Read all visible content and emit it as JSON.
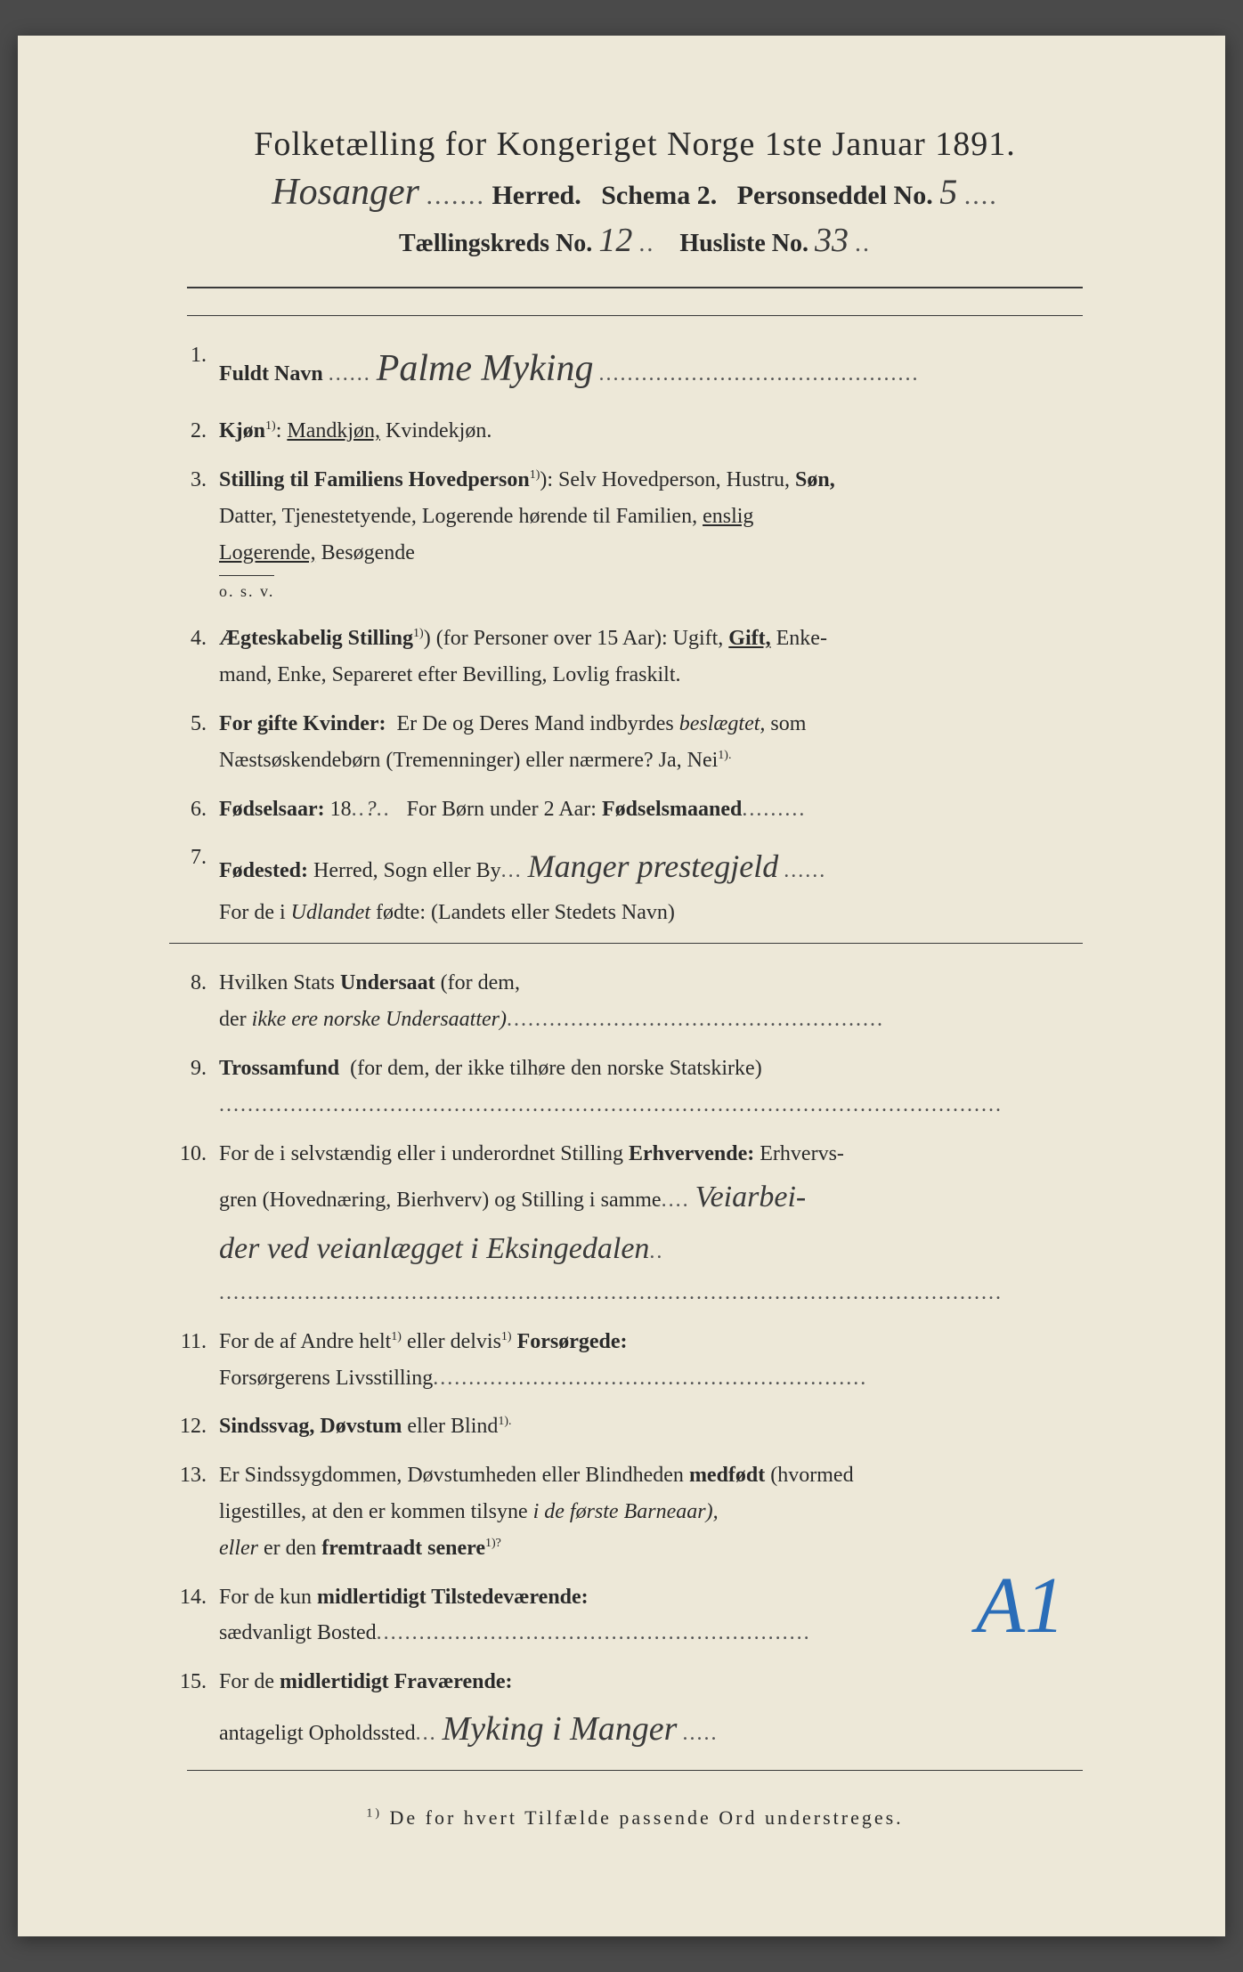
{
  "header": {
    "title_line1": "Folketælling for Kongeriget Norge 1ste Januar 1891.",
    "herred_hw": "Hosanger",
    "herred_label": "Herred.",
    "schema": "Schema 2.",
    "personseddel_label": "Personseddel No.",
    "personseddel_hw": "5",
    "taellingskreds_label": "Tællingskreds No.",
    "taellingskreds_hw": "12",
    "husliste_label": "Husliste No.",
    "husliste_hw": "33"
  },
  "q1": {
    "num": "1.",
    "label": "Fuldt Navn",
    "hw": "Palme Myking"
  },
  "q2": {
    "num": "2.",
    "label_bold": "Kjøn",
    "sup": "1)",
    "colon": ":",
    "opt1": "Mandkjøn,",
    "opt2": "Kvindekjøn."
  },
  "q3": {
    "num": "3.",
    "label": "Stilling til Familiens Hovedperson",
    "sup": "1)",
    "rest": "Selv Hovedperson, Hustru,",
    "son": "Søn,",
    "line2": "Datter, Tjenestetyende, Logerende hørende til Familien,",
    "enslig": "enslig",
    "logerende": "Logerende,",
    "besogende": "Besøgende",
    "osv": "o. s. v."
  },
  "q4": {
    "num": "4.",
    "label": "Ægteskabelig Stilling",
    "sup": "1)",
    "paren": "(for Personer over 15 Aar):",
    "opts1": "Ugift,",
    "gift": "Gift,",
    "enke": "Enke-",
    "line2": "mand, Enke, Separeret efter Bevilling, Lovlig fraskilt."
  },
  "q5": {
    "num": "5.",
    "label": "For gifte Kvinder:",
    "text1": "Er De og Deres Mand indbyrdes",
    "ital": "beslægtet,",
    "text2": "som",
    "line2": "Næstsøskendebørn (Tremenninger) eller nærmere? Ja, Nei",
    "sup": "1)."
  },
  "q6": {
    "num": "6.",
    "label": "Fødselsaar:",
    "y18": "18",
    "hw": "?",
    "text2": "For Børn under 2 Aar:",
    "label2": "Fødselsmaaned"
  },
  "q7": {
    "num": "7.",
    "label": "Fødested:",
    "text1": "Herred, Sogn eller By",
    "hw": "Manger prestegjeld",
    "line2_a": "For de i",
    "line2_i": "Udlandet",
    "line2_b": "fødte: (Landets eller Stedets Navn)"
  },
  "q8": {
    "num": "8.",
    "text1": "Hvilken Stats",
    "bold": "Undersaat",
    "text2": "(for dem,",
    "line2_a": "der",
    "line2_i": "ikke ere norske Undersaatter)"
  },
  "q9": {
    "num": "9.",
    "bold": "Trossamfund",
    "text": "(for dem, der ikke tilhøre den norske Statskirke)"
  },
  "q10": {
    "num": "10.",
    "text1": "For de i selvstændig eller i underordnet Stilling",
    "bold": "Erhvervende:",
    "text2": "Erhvervs-",
    "line2": "gren (Hovednæring, Bierhverv) og Stilling i samme",
    "hw1": "Veiarbei-",
    "hw2": "der ved veianlægget i Eksingedalen"
  },
  "q11": {
    "num": "11.",
    "text1": "For de af Andre helt",
    "sup": "1)",
    "text2": "eller delvis",
    "bold": "Forsørgede:",
    "line2": "Forsørgerens Livsstilling"
  },
  "q12": {
    "num": "12.",
    "bold": "Sindssvag, Døvstum",
    "text": "eller Blind",
    "sup": "1)."
  },
  "q13": {
    "num": "13.",
    "text1": "Er Sindssygdommen, Døvstumheden eller Blindheden",
    "bold": "medfødt",
    "text2": "(hvormed",
    "line2_a": "ligestilles, at den er kommen tilsyne",
    "line2_i": "i de første Barneaar),",
    "line3_i": "eller",
    "line3_a": "er den",
    "line3_b": "fremtraadt senere",
    "sup": "1)?"
  },
  "q14": {
    "num": "14.",
    "text1": "For de kun",
    "bold": "midlertidigt Tilstedeværende:",
    "line2": "sædvanligt Bosted"
  },
  "q15": {
    "num": "15.",
    "text1": "For de",
    "bold": "midlertidigt Fraværende:",
    "line2": "antageligt Opholdssted",
    "hw": "Myking i Manger"
  },
  "footnote": {
    "sup": "1)",
    "text": "De for hvert Tilfælde passende Ord understreges."
  },
  "blue_mark": "A1",
  "colors": {
    "paper_bg": "#ede8d8",
    "text": "#2a2a2a",
    "blue": "#2a6db8"
  }
}
